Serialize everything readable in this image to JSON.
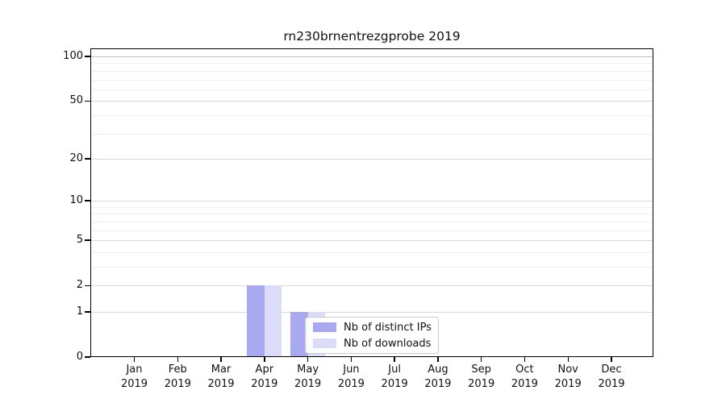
{
  "chart_data": {
    "type": "bar",
    "title": "rn230brnentrezgprobe 2019",
    "categories": [
      "Jan",
      "Feb",
      "Mar",
      "Apr",
      "May",
      "Jun",
      "Jul",
      "Aug",
      "Sep",
      "Oct",
      "Nov",
      "Dec"
    ],
    "year_label": "2019",
    "series": [
      {
        "name": "Nb of distinct IPs",
        "color": "#a9a9f0",
        "values": [
          0,
          0,
          0,
          2,
          1,
          0,
          0,
          0,
          0,
          0,
          0,
          0
        ]
      },
      {
        "name": "Nb of downloads",
        "color": "#dcdcf8",
        "values": [
          0,
          0,
          0,
          2,
          1,
          0,
          0,
          0,
          0,
          0,
          0,
          0
        ]
      }
    ],
    "yscale": "log1p",
    "yticks": [
      0,
      1,
      2,
      5,
      10,
      20,
      50,
      100
    ],
    "minor_gridlines": [
      3,
      4,
      6,
      7,
      8,
      9,
      30,
      40,
      60,
      70,
      80,
      90
    ],
    "ylim": [
      0,
      114
    ],
    "xlabel": "",
    "ylabel": "",
    "grid": true,
    "legend_position": "inside-lower-center",
    "colors": {
      "major_grid": "#d9d9d9",
      "top_major_grid": "#bfbfbf",
      "minor_grid": "#efefef",
      "spine": "#000000"
    }
  }
}
